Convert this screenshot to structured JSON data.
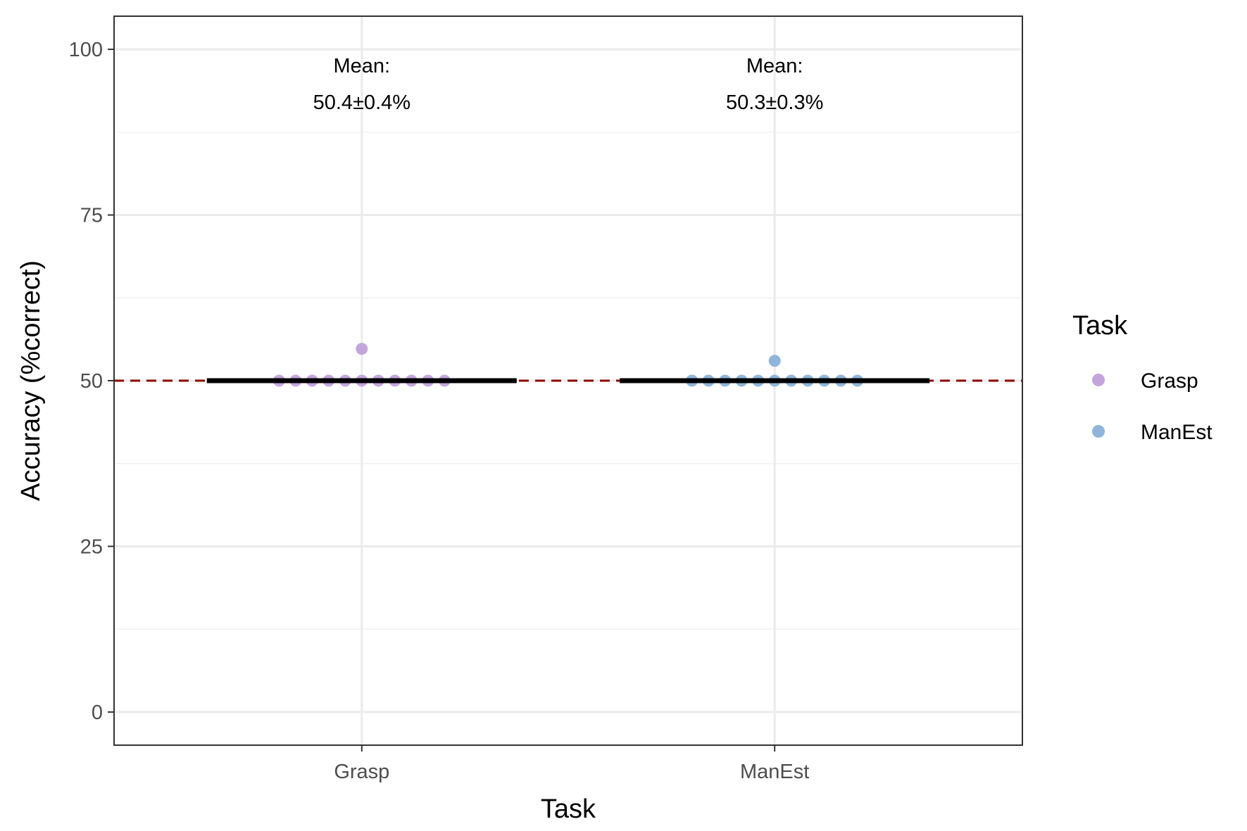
{
  "chart_data": {
    "type": "scatter",
    "xlabel": "Task",
    "ylabel": "Accuracy (%correct)",
    "categories": [
      "Grasp",
      "ManEst"
    ],
    "ylim": [
      -5,
      105
    ],
    "yticks": [
      0,
      25,
      50,
      75,
      100
    ],
    "grid": true,
    "reference_line": {
      "y": 50,
      "style": "dashed",
      "color": "#8b0000"
    },
    "series": [
      {
        "name": "Grasp",
        "color": "#c3a5dc",
        "points": [
          50,
          50,
          50,
          50,
          50,
          50,
          50,
          50,
          50,
          50,
          50,
          54.8
        ],
        "mean_value": 50,
        "mean_annotation": [
          "Mean:",
          "50.4±0.4%"
        ]
      },
      {
        "name": "ManEst",
        "color": "#8fb6da",
        "points": [
          50,
          50,
          50,
          50,
          50,
          50,
          50,
          50,
          50,
          50,
          50,
          53
        ],
        "mean_value": 50,
        "mean_annotation": [
          "Mean:",
          "50.3±0.3%"
        ]
      }
    ],
    "legend": {
      "title": "Task",
      "placement": "right"
    }
  }
}
